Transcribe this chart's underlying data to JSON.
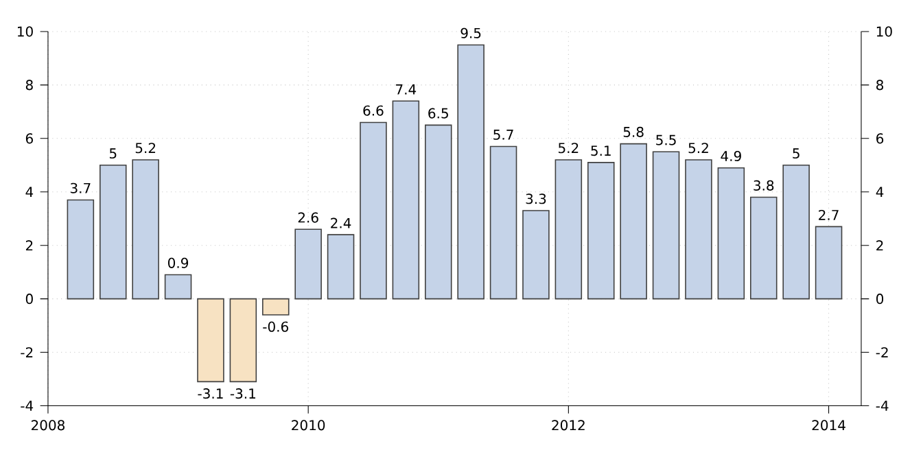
{
  "chart_data": {
    "type": "bar",
    "x": [
      "2008-04",
      "2008-07",
      "2008-10",
      "2009-01",
      "2009-04",
      "2009-07",
      "2009-10",
      "2010-01",
      "2010-04",
      "2010-07",
      "2010-10",
      "2011-01",
      "2011-04",
      "2011-07",
      "2011-10",
      "2012-01",
      "2012-04",
      "2012-07",
      "2012-10",
      "2013-01",
      "2013-04",
      "2013-07",
      "2013-10",
      "2014-01"
    ],
    "values": [
      3.7,
      5,
      5.2,
      0.9,
      -3.1,
      -3.1,
      -0.6,
      2.6,
      2.4,
      6.6,
      7.4,
      6.5,
      9.5,
      5.7,
      3.3,
      5.2,
      5.1,
      5.8,
      5.5,
      5.2,
      4.9,
      3.8,
      5,
      2.7
    ],
    "colors": [
      "#c5d3e8",
      "#c5d3e8",
      "#c5d3e8",
      "#c5d3e8",
      "#f7e2c2",
      "#f7e2c2",
      "#f7e2c2",
      "#c5d3e8",
      "#c5d3e8",
      "#c5d3e8",
      "#c5d3e8",
      "#c5d3e8",
      "#c5d3e8",
      "#c5d3e8",
      "#c5d3e8",
      "#c5d3e8",
      "#c5d3e8",
      "#c5d3e8",
      "#c5d3e8",
      "#c5d3e8",
      "#c5d3e8",
      "#c5d3e8",
      "#c5d3e8",
      "#c5d3e8"
    ],
    "data_labels": true,
    "xlim": [
      "2008-01",
      "2014-04"
    ],
    "xticks": [
      "2008",
      "2010",
      "2012",
      "2014"
    ],
    "ylim": [
      -4,
      10
    ],
    "yticks": [
      -4,
      -2,
      0,
      2,
      4,
      6,
      8,
      10
    ],
    "y2lim": [
      -4,
      10
    ],
    "y2ticks": [
      -4,
      -2,
      0,
      2,
      4,
      6,
      8,
      10
    ],
    "grid": true
  }
}
